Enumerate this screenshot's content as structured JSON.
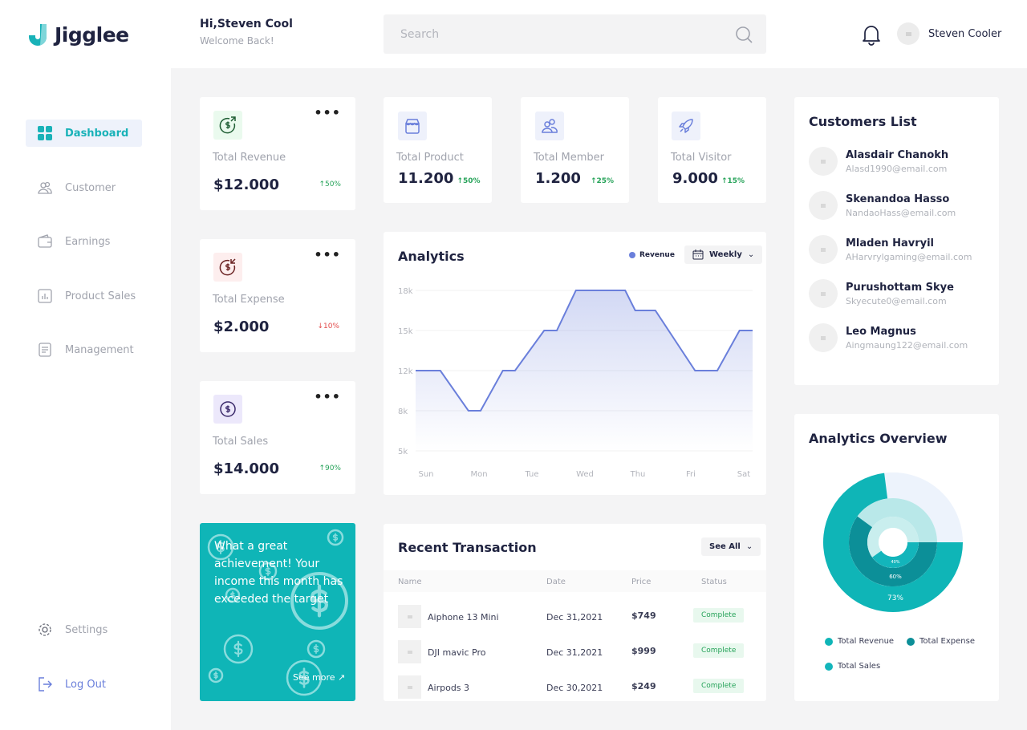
{
  "brand": {
    "name": "Jigglee",
    "accent": "#19b2b8"
  },
  "header": {
    "greeting": "Hi,Steven Cool",
    "subtitle": "Welcome Back!",
    "search_placeholder": "Search",
    "user_name": "Steven Cooler"
  },
  "sidebar": {
    "items": [
      {
        "label": "Dashboard",
        "icon": "grid-icon",
        "active": true
      },
      {
        "label": "Customer",
        "icon": "users-icon"
      },
      {
        "label": "Earnings",
        "icon": "wallet-icon"
      },
      {
        "label": "Product Sales",
        "icon": "bar-chart-icon"
      },
      {
        "label": "Management",
        "icon": "document-icon"
      }
    ],
    "bottom": [
      {
        "label": "Settings",
        "icon": "gear-icon"
      },
      {
        "label": "Log Out",
        "icon": "logout-icon"
      }
    ]
  },
  "stats": {
    "revenue": {
      "label": "Total Revenue",
      "value": "$12.000",
      "change": "50%",
      "direction": "up"
    },
    "expense": {
      "label": "Total Expense",
      "value": "$2.000",
      "change": "10%",
      "direction": "down"
    },
    "sales": {
      "label": "Total Sales",
      "value": "$14.000",
      "change": "90%",
      "direction": "up"
    },
    "product": {
      "label": "Total Product",
      "value": "11.200",
      "change": "50%",
      "direction": "up"
    },
    "member": {
      "label": "Total Member",
      "value": "1.200",
      "change": "25%",
      "direction": "up"
    },
    "visitor": {
      "label": "Total Visitor",
      "value": "9.000",
      "change": "15%",
      "direction": "up"
    }
  },
  "promo": {
    "text": "What a great achievement! Your income this month has exceeded the target",
    "link": "See more ↗"
  },
  "analytics": {
    "title": "Analytics",
    "legend": "Revenue",
    "period": "Weekly"
  },
  "chart_data": [
    {
      "type": "area",
      "title": "Analytics",
      "legend_placement": "top-right",
      "grid": true,
      "categories": [
        "Sun",
        "Mon",
        "Tue",
        "Wed",
        "Thu",
        "Fri",
        "Sat"
      ],
      "yticks": [
        "5k",
        "8k",
        "12k",
        "15k",
        "18k"
      ],
      "ytick_values": [
        5000,
        8000,
        12000,
        15000,
        18000
      ],
      "series": [
        {
          "name": "Revenue",
          "color": "#6a7fdb",
          "x": [
            -0.2,
            0.27,
            0.8,
            1.03,
            1.45,
            1.68,
            2.23,
            2.47,
            2.83,
            3.76,
            3.95,
            4.33,
            5.08,
            5.5,
            5.92,
            6.17
          ],
          "y": [
            12000,
            12000,
            8000,
            8000,
            12000,
            12000,
            15000,
            15000,
            18000,
            18000,
            16500,
            16500,
            12000,
            12000,
            15000,
            15000
          ]
        }
      ]
    },
    {
      "type": "radial-bar",
      "title": "Analytics Overview",
      "legend_placement": "bottom",
      "series": [
        {
          "name": "Total Revenue",
          "value": 73,
          "color": "#0fb5b7",
          "track": "#edf3fc"
        },
        {
          "name": "Total Expense",
          "value": 60,
          "color": "#0c8f98",
          "track": "#b9e8e9"
        },
        {
          "name": "Total Sales",
          "value": 40,
          "color": "#13b5bb",
          "track": "#c9eeee"
        }
      ]
    }
  ],
  "customers": {
    "title": "Customers List",
    "items": [
      {
        "name": "Alasdair Chanokh",
        "email": "Alasd1990@email.com"
      },
      {
        "name": "Skenandoa Hasso",
        "email": "NandaoHass@email.com"
      },
      {
        "name": "Mladen Havryil",
        "email": "AHarvrylgaming@email.com"
      },
      {
        "name": "Purushottam Skye",
        "email": "Skyecute0@email.com"
      },
      {
        "name": "Leo Magnus",
        "email": "Aingmaung122@email.com"
      }
    ]
  },
  "overview": {
    "title": "Analytics Overview",
    "labels": [
      "73%",
      "60%",
      "40%"
    ]
  },
  "transactions": {
    "title": "Recent Transaction",
    "see_all": "See All",
    "columns": [
      "Name",
      "Date",
      "Price",
      "Status"
    ],
    "rows": [
      {
        "name": "Aiphone 13 Mini",
        "date": "Dec 31,2021",
        "price": "$749",
        "status": "Complete"
      },
      {
        "name": "DJI mavic Pro",
        "date": "Dec 31,2021",
        "price": "$999",
        "status": "Complete"
      },
      {
        "name": "Airpods 3",
        "date": "Dec 30,2021",
        "price": "$249",
        "status": "Complete"
      }
    ]
  }
}
